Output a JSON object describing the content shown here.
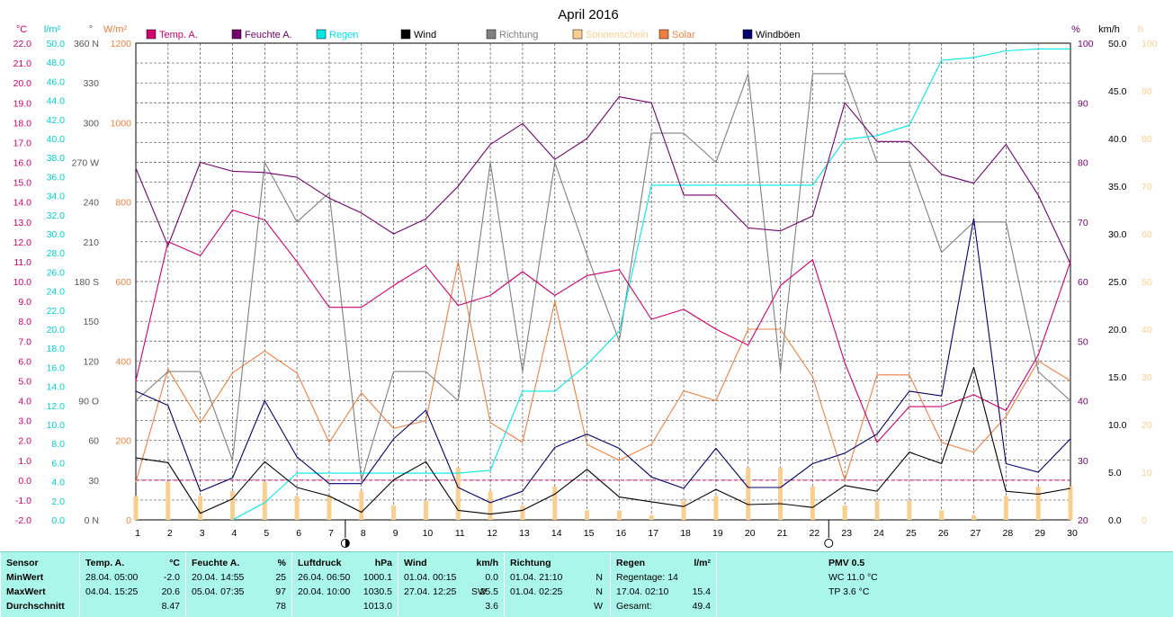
{
  "chart_data": {
    "type": "line",
    "title": "April 2016",
    "categories": [
      "1",
      "2",
      "3",
      "4",
      "5",
      "6",
      "7",
      "8",
      "9",
      "10",
      "11",
      "12",
      "13",
      "14",
      "15",
      "16",
      "17",
      "18",
      "19",
      "20",
      "21",
      "22",
      "23",
      "24",
      "25",
      "26",
      "27",
      "28",
      "29",
      "30"
    ],
    "axes": {
      "temp": {
        "unit": "°C",
        "min": -2,
        "max": 22,
        "step": 1,
        "ticks": [
          "-2.0",
          "-1.0",
          "0.0",
          "1.0",
          "2.0",
          "3.0",
          "4.0",
          "5.0",
          "6.0",
          "7.0",
          "8.0",
          "9.0",
          "10.0",
          "11.0",
          "12.0",
          "13.0",
          "14.0",
          "15.0",
          "16.0",
          "17.0",
          "18.0",
          "19.0",
          "20.0",
          "21.0",
          "22.0"
        ]
      },
      "rain": {
        "unit": "l/m²",
        "min": 0,
        "max": 50,
        "step": 2,
        "ticks": [
          "0.0",
          "2.0",
          "4.0",
          "6.0",
          "8.0",
          "10.0",
          "12.0",
          "14.0",
          "16.0",
          "18.0",
          "20.0",
          "22.0",
          "24.0",
          "26.0",
          "28.0",
          "30.0",
          "32.0",
          "34.0",
          "36.0",
          "38.0",
          "40.0",
          "42.0",
          "44.0",
          "46.0",
          "48.0",
          "50.0"
        ]
      },
      "direction": {
        "unit": "°",
        "min": 0,
        "max": 360,
        "step": 30,
        "ticks": [
          "0 N",
          "30",
          "60",
          "90 O",
          "120",
          "150",
          "180 S",
          "210",
          "240",
          "270 W",
          "300",
          "330",
          "360 N"
        ]
      },
      "solar": {
        "unit": "W/m²",
        "min": 0,
        "max": 1200,
        "step": 200,
        "ticks": [
          "0",
          "200",
          "400",
          "600",
          "800",
          "1000",
          "1200"
        ]
      },
      "humidity": {
        "unit": "%",
        "min": 20,
        "max": 100,
        "step": 10,
        "ticks": [
          "20",
          "30",
          "40",
          "50",
          "60",
          "70",
          "80",
          "90",
          "100"
        ]
      },
      "wind": {
        "unit": "km/h",
        "min": 0,
        "max": 50,
        "step": 5,
        "ticks": [
          "0.0",
          "5.0",
          "10.0",
          "15.0",
          "20.0",
          "25.0",
          "30.0",
          "35.0",
          "40.0",
          "45.0",
          "50.0"
        ]
      },
      "sun": {
        "unit": "h",
        "min": 0,
        "max": 100,
        "step": 10,
        "ticks": [
          "0",
          "10",
          "20",
          "30",
          "40",
          "50",
          "60",
          "70",
          "80",
          "90",
          "100"
        ]
      }
    },
    "series": [
      {
        "name": "Temp. A.",
        "axis": "temp",
        "color": "#d0006f",
        "values": [
          5.0,
          12.0,
          11.3,
          13.6,
          13.1,
          11.0,
          8.7,
          8.7,
          9.8,
          10.8,
          8.8,
          9.3,
          10.5,
          9.3,
          10.3,
          10.6,
          8.1,
          8.6,
          7.6,
          6.8,
          9.8,
          11.1,
          5.9,
          1.9,
          3.7,
          3.7,
          4.3,
          3.5,
          6.3,
          11.0
        ]
      },
      {
        "name": "Feuchte A.",
        "axis": "humidity",
        "color": "#75006f",
        "values": [
          79,
          66,
          80,
          78.5,
          78.3,
          77.5,
          74,
          71.5,
          68,
          70.5,
          76,
          83,
          86.5,
          80.5,
          84,
          91,
          90,
          74.5,
          74.5,
          69,
          68.5,
          71,
          90,
          83.5,
          83.5,
          78,
          76.5,
          83,
          74.5,
          63
        ]
      },
      {
        "name": "Regen",
        "axis": "rain",
        "color": "#00e8e8",
        "values": [
          null,
          null,
          null,
          0.0,
          1.8,
          4.9,
          4.9,
          4.9,
          4.9,
          4.9,
          4.9,
          5.2,
          13.5,
          13.5,
          16.3,
          19.8,
          35.1,
          35.1,
          35.1,
          35.1,
          35.1,
          35.1,
          39.9,
          40.3,
          41.4,
          48.2,
          48.5,
          49.2,
          49.4,
          49.4
        ]
      },
      {
        "name": "Wind",
        "axis": "wind",
        "color": "#000000",
        "values": [
          6.5,
          6.0,
          0.7,
          2.2,
          6.1,
          3.4,
          2.5,
          0.8,
          4.2,
          6.1,
          1.0,
          0.6,
          1.0,
          2.7,
          5.3,
          2.4,
          1.9,
          1.4,
          3.2,
          1.6,
          1.7,
          1.3,
          3.6,
          3.0,
          7.1,
          5.9,
          16.0,
          3.0,
          2.7,
          3.3
        ]
      },
      {
        "name": "Richtung",
        "axis": "direction",
        "color": "#808080",
        "values": [
          90,
          112,
          112,
          45,
          270,
          225,
          247,
          30,
          112,
          112,
          90,
          270,
          112,
          270,
          200,
          135,
          292,
          292,
          270,
          337,
          112,
          337,
          337,
          270,
          270,
          202,
          225,
          225,
          112,
          90
        ]
      },
      {
        "name": "Sonnenschein",
        "axis": "sun",
        "color": "#f9cf8f",
        "values": [
          5,
          8,
          5,
          6,
          8,
          5,
          5,
          6,
          3,
          4,
          11,
          6,
          3,
          7,
          2,
          2,
          1,
          4,
          5,
          11,
          11,
          7,
          3,
          4,
          4,
          2,
          1,
          5,
          7,
          7
        ]
      },
      {
        "name": "Solar",
        "axis": "solar",
        "color": "#f17f3f",
        "values": [
          95,
          380,
          245,
          370,
          425,
          370,
          195,
          320,
          230,
          250,
          650,
          245,
          195,
          550,
          190,
          150,
          190,
          325,
          300,
          480,
          480,
          360,
          100,
          365,
          365,
          195,
          170,
          260,
          400,
          350
        ]
      },
      {
        "name": "Windböen",
        "axis": "wind",
        "color": "#00006f",
        "values": [
          13.5,
          12.0,
          3.0,
          4.4,
          12.5,
          6.6,
          3.8,
          3.8,
          8.5,
          11.5,
          3.4,
          1.8,
          3.0,
          7.6,
          9.0,
          7.5,
          4.5,
          3.3,
          7.5,
          3.4,
          3.4,
          5.9,
          7.0,
          9.0,
          13.5,
          13.0,
          31.6,
          5.9,
          5.0,
          8.5
        ]
      }
    ],
    "legend": [
      "Temp. A.",
      "Feuchte A.",
      "Regen",
      "Wind",
      "Richtung",
      "Sonnenschein",
      "Solar",
      "Windböen"
    ],
    "zero_line_color": "#d0006f",
    "moon_first_quarter_day": 7,
    "moon_full_day": 22,
    "grid": true
  },
  "summary": {
    "headers": {
      "sensor": "Sensor",
      "temp": "Temp. A.",
      "temp_unit": "°C",
      "hum": "Feuchte A.",
      "hum_unit": "%",
      "press": "Luftdruck",
      "press_unit": "hPa",
      "wind": "Wind",
      "wind_unit": "km/h",
      "dir": "Richtung",
      "rain": "Regen",
      "rain_unit": "l/m²",
      "pmv": "PMV 0.5"
    },
    "rows": {
      "min": "MinWert",
      "max": "MaxWert",
      "avg": "Durchschnitt"
    },
    "temp": {
      "min_date": "28.04.  05:00",
      "min": "-2.0",
      "max_date": "04.04.  15:25",
      "max": "20.6",
      "avg": "8.47"
    },
    "hum": {
      "min_date": "20.04.  14:55",
      "min": "25",
      "max_date": "05.04.  07:35",
      "max": "97",
      "avg": "78"
    },
    "press": {
      "min_date": "26.04.  06:50",
      "min": "1000.1",
      "max_date": "20.04.  10:00",
      "max": "1030.5",
      "avg": "1013.0"
    },
    "wind": {
      "min_date": "01.04.  00:15",
      "min": "0.0",
      "max_date": "27.04.  12:25",
      "max_dir": "SW",
      "max": "25.5",
      "avg": "3.6"
    },
    "dir": {
      "min_date": "01.04.  21:10",
      "min": "N",
      "max_date": "01.04.  02:25",
      "max": "N",
      "avg": "W"
    },
    "rain": {
      "days": "Regentage: 14",
      "max_date": "17.04.  02:10",
      "max": "15.4",
      "total_label": "Gesamt:",
      "total": "49.4"
    },
    "pmv": {
      "wc": "WC 11.0 °C",
      "tp": "TP 3.6 °C"
    }
  }
}
